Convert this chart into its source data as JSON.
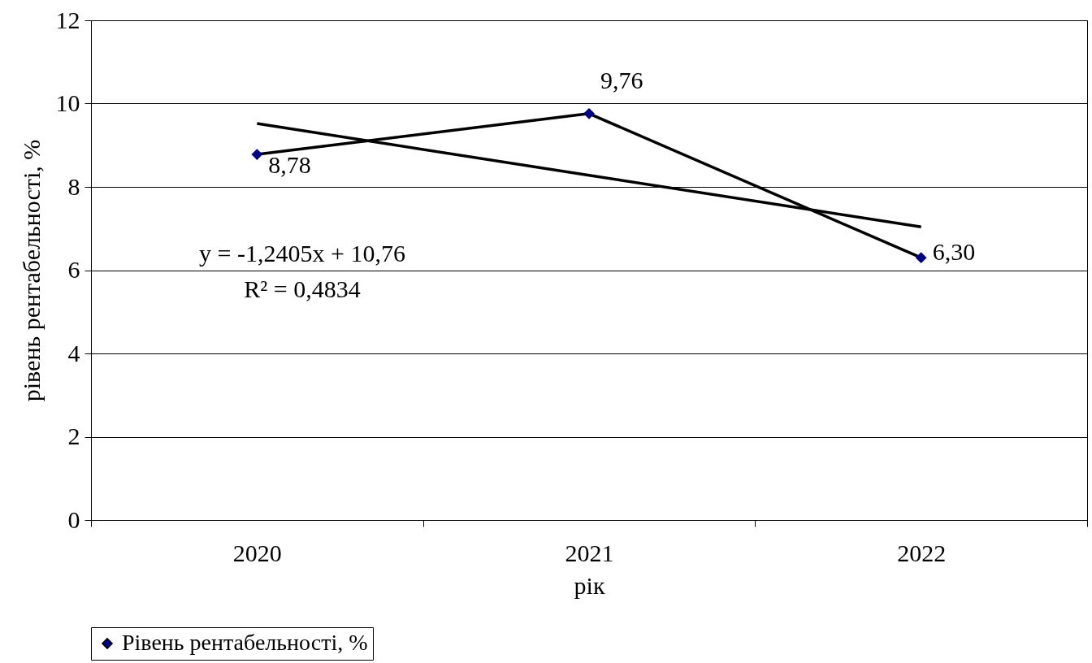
{
  "chart_data": {
    "type": "line",
    "xlabel": "рік",
    "ylabel": "рівень рентабельності, %",
    "categories": [
      "2020",
      "2021",
      "2022"
    ],
    "series": [
      {
        "name": "Рівень рентабельності, %",
        "color": "#000000",
        "values": [
          8.78,
          9.76,
          6.3
        ],
        "value_labels": [
          "8,78",
          "9,76",
          "6,30"
        ],
        "marker": "diamond"
      },
      {
        "type": "line",
        "values": [
          9.52,
          8.28,
          7.04
        ],
        "color": "#000000",
        "marker": "none"
      }
    ],
    "annotations": [
      "y = -1,2405x + 10,76",
      "R² = 0,4834"
    ],
    "ylim": [
      0,
      12
    ],
    "yticks": [
      0,
      2,
      4,
      6,
      8,
      10,
      12
    ],
    "grid": "y",
    "legend": "bottom"
  }
}
